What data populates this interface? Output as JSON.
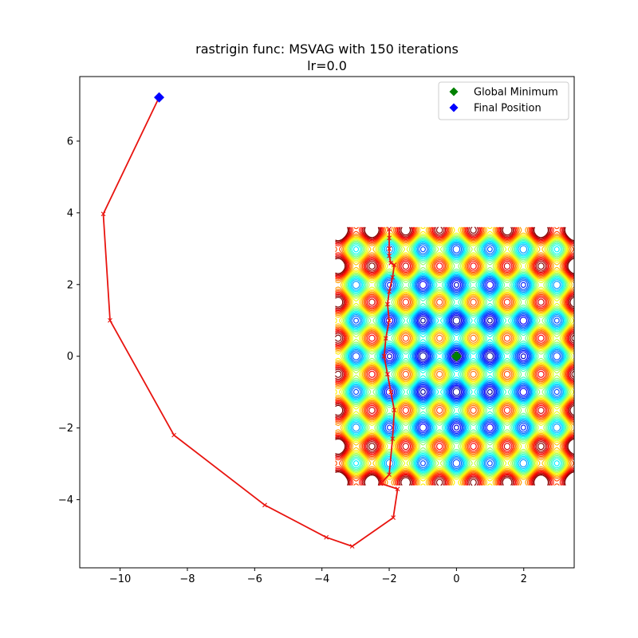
{
  "chart_data": {
    "type": "line",
    "title": "rastrigin func: MSVAG with 150 iterations",
    "subtitle": "lr=0.0",
    "xlabel": "",
    "ylabel": "",
    "xlim": [
      -11.2,
      3.5
    ],
    "ylim": [
      -5.9,
      7.8
    ],
    "contour_extent": {
      "x": [
        -3.6,
        3.6
      ],
      "y": [
        -3.6,
        3.6
      ]
    },
    "x_ticks": [
      -10,
      -8,
      -6,
      -4,
      -2,
      0,
      2
    ],
    "x_tick_labels": [
      "−10",
      "−8",
      "−6",
      "−4",
      "−2",
      "0",
      "2"
    ],
    "y_ticks": [
      -4,
      -2,
      0,
      2,
      4,
      6
    ],
    "y_tick_labels": [
      "−4",
      "−2",
      "0",
      "2",
      "4",
      "6"
    ],
    "grid": false,
    "legend_position": "top-right",
    "colors": {
      "path": "#e8140f",
      "global_min": "#008000",
      "final_pos": "#0000ff"
    },
    "legend": [
      {
        "label": "Global Minimum",
        "marker": "diamond",
        "color": "#008000"
      },
      {
        "label": "Final Position",
        "marker": "diamond",
        "color": "#0000ff"
      }
    ],
    "global_minimum": {
      "x": 0.0,
      "y": 0.0
    },
    "final_position": {
      "x": -8.84,
      "y": 7.22
    },
    "path": {
      "x": [
        -2.0,
        -2.0,
        -2.0,
        -2.0,
        -1.95,
        -1.85,
        -1.9,
        -2.0,
        -2.05,
        -2.0,
        -2.1,
        -2.15,
        -2.05,
        -1.95,
        -1.85,
        -1.9,
        -2.0,
        -2.25,
        -1.75,
        -1.88,
        -3.1,
        -3.87,
        -5.7,
        -8.4,
        -10.3,
        -10.5,
        -8.84
      ],
      "y": [
        3.55,
        3.3,
        3.0,
        2.8,
        2.6,
        2.55,
        2.2,
        1.8,
        1.45,
        1.0,
        0.5,
        0.0,
        -0.5,
        -1.0,
        -1.5,
        -2.3,
        -3.3,
        -3.55,
        -3.7,
        -4.5,
        -5.3,
        -5.05,
        -4.15,
        -2.2,
        1.0,
        3.97,
        7.22
      ]
    }
  }
}
